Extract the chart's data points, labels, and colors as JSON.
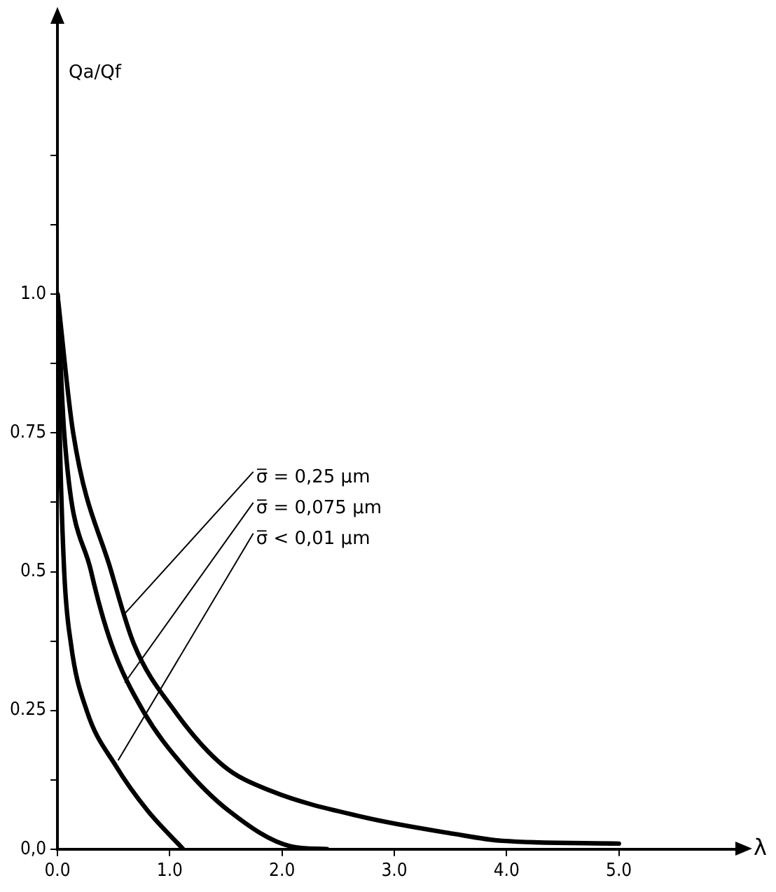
{
  "chart_data": {
    "type": "line",
    "xlabel": "λ",
    "ylabel": "Qa/Qf",
    "series": [
      {
        "color": "#000000",
        "x": [
          0,
          0.02,
          0.06,
          0.12,
          0.26,
          0.52,
          0.8,
          1.12
        ],
        "values": [
          1,
          0.75,
          0.5,
          0.37,
          0.25,
          0.15,
          0.07,
          0
        ]
      },
      {
        "color": "#000000",
        "x": [
          0,
          0.06,
          0.3,
          0.48,
          0.76,
          1.12,
          1.52,
          2.08,
          2.4
        ],
        "values": [
          1,
          0.75,
          0.5,
          0.37,
          0.25,
          0.15,
          0.07,
          0.005,
          0
        ]
      },
      {
        "color": "#000000",
        "x": [
          0,
          0.14,
          0.48,
          0.68,
          1.04,
          1.48,
          1.9,
          2.72,
          3.52,
          3.96,
          5.0
        ],
        "values": [
          1,
          0.75,
          0.5,
          0.37,
          0.25,
          0.15,
          0.105,
          0.058,
          0.028,
          0.015,
          0.01
        ]
      }
    ],
    "annotations": [
      {
        "text": "σ̅ = 0,25 µm",
        "x": 0.58,
        "y": 0.42
      },
      {
        "text": "σ̅ = 0,075 µm",
        "x": 0.6,
        "y": 0.3
      },
      {
        "text": "σ̅ < 0,01 µm",
        "x": 0.54,
        "y": 0.16
      }
    ],
    "xlim": [
      0,
      6.1
    ],
    "xticks": [
      {
        "value": 0,
        "label": "0.0"
      },
      {
        "value": 1,
        "label": "1.0"
      },
      {
        "value": 2,
        "label": "2.0"
      },
      {
        "value": 3,
        "label": "3.0"
      },
      {
        "value": 4,
        "label": "4.0"
      },
      {
        "value": 5,
        "label": "5.0"
      }
    ],
    "ylim": [
      0,
      1.5
    ],
    "yticks": [
      {
        "value": 0,
        "label": "0,0"
      },
      {
        "value": 0.125,
        "label": null
      },
      {
        "value": 0.25,
        "label": "0.25"
      },
      {
        "value": 0.375,
        "label": null
      },
      {
        "value": 0.5,
        "label": "0.5"
      },
      {
        "value": 0.625,
        "label": null
      },
      {
        "value": 0.75,
        "label": "0.75"
      },
      {
        "value": 0.875,
        "label": null
      },
      {
        "value": 1,
        "label": "1.0"
      },
      {
        "value": 1.125,
        "label": null
      },
      {
        "value": 1.25,
        "label": null
      }
    ],
    "grid": false,
    "legend": false,
    "marker": "none",
    "line_style": "solid"
  }
}
